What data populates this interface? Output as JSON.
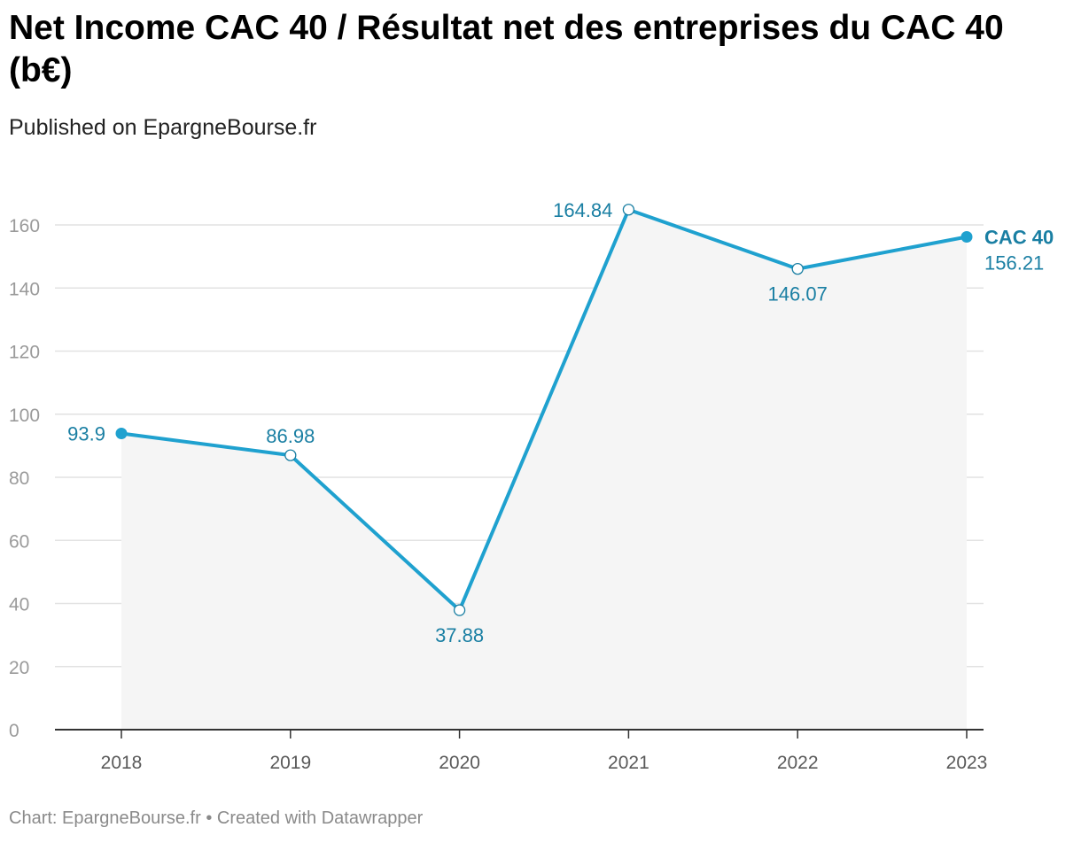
{
  "title": "Net Income CAC 40 / Résultat net des entreprises du CAC 40 (b€)",
  "subtitle": "Published on EpargneBourse.fr",
  "footer": "Chart: EpargneBourse.fr • Created with Datawrapper",
  "colors": {
    "line": "#1fa1cf",
    "label": "#1a7fa3",
    "area": "#f5f5f5",
    "grid": "#e2e2e2",
    "axis": "#333333"
  },
  "chart_data": {
    "type": "line",
    "title": "Net Income CAC 40 / Résultat net des entreprises du CAC 40 (b€)",
    "xlabel": "",
    "ylabel": "",
    "x": [
      "2018",
      "2019",
      "2020",
      "2021",
      "2022",
      "2023"
    ],
    "series": [
      {
        "name": "CAC 40",
        "values": [
          93.9,
          86.98,
          37.88,
          164.84,
          146.07,
          156.21
        ],
        "labels": [
          "93.9",
          "86.98",
          "37.88",
          "164.84",
          "146.07",
          "156.21"
        ]
      }
    ],
    "ylim": [
      0,
      160
    ],
    "yticks": [
      "0",
      "20",
      "40",
      "60",
      "80",
      "100",
      "120",
      "140",
      "160"
    ],
    "grid": true,
    "area_fill": true
  }
}
